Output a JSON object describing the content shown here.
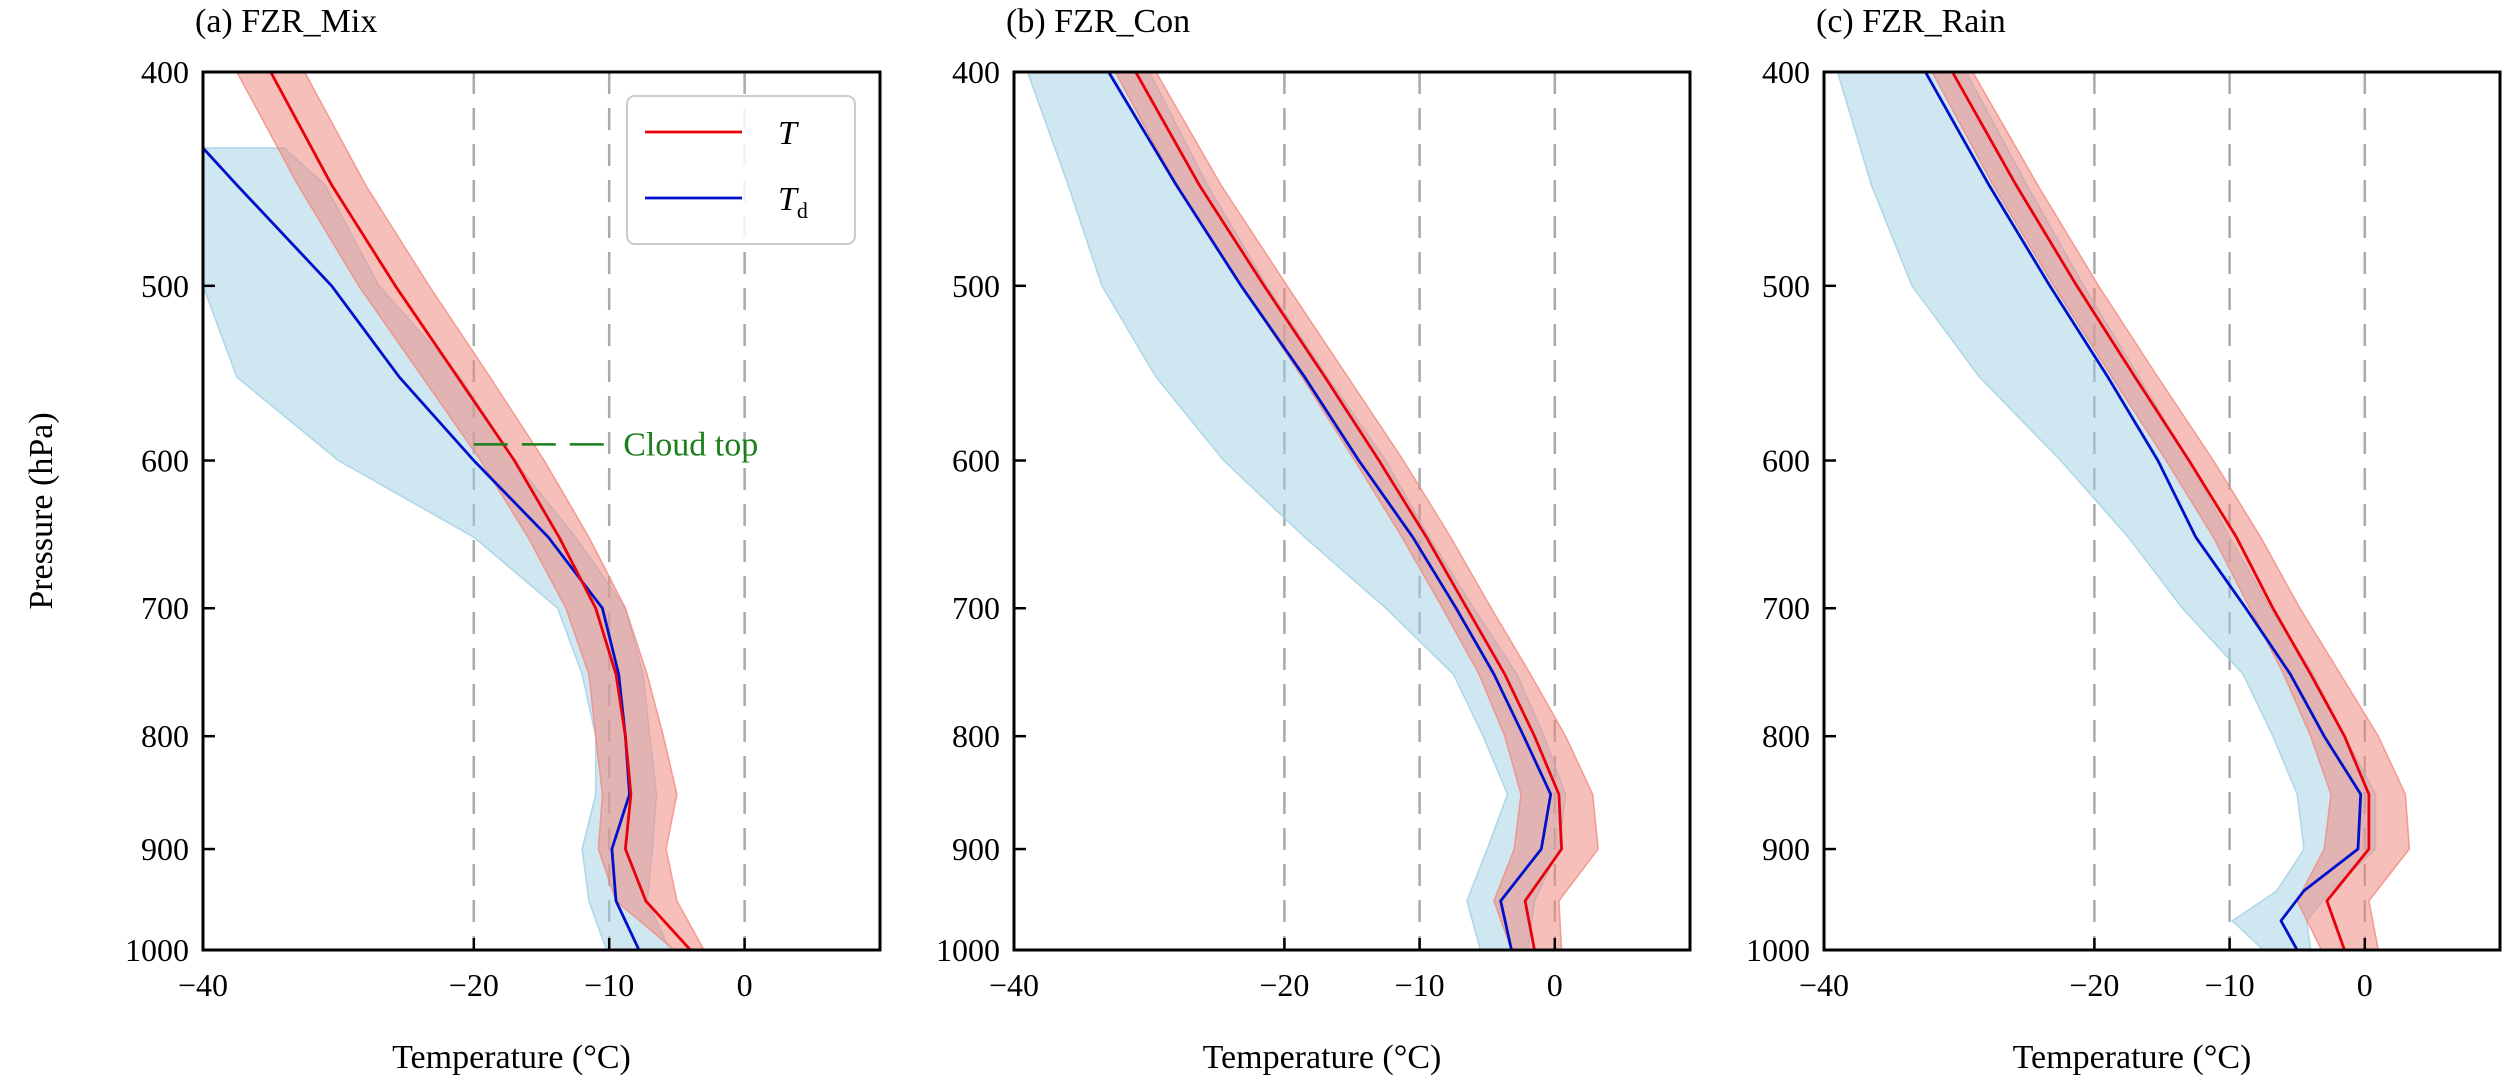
{
  "chart_data": {
    "type": "line",
    "shared": {
      "ylabel": "Pressure (hPa)",
      "xlabel": "Temperature (°C)",
      "xlim": [
        -40,
        10
      ],
      "ylim": [
        1000,
        400
      ],
      "yscale": "log",
      "yticks": [
        "400",
        "500",
        "600",
        "700",
        "800",
        "900",
        "1000"
      ],
      "ytick_values": [
        400,
        500,
        600,
        700,
        800,
        900,
        1000
      ],
      "xticks": [
        "−40",
        "−20",
        "−10",
        "0"
      ],
      "xtick_values": [
        -40,
        -20,
        -10,
        0
      ],
      "vlines": [
        -20,
        -10,
        0
      ],
      "grid": false,
      "colors": {
        "T": "#e8000b",
        "Td": "#0011cc",
        "T_band": "#f08a80",
        "Td_band": "#9fcfe3",
        "cloud_top": "#1a7f1a",
        "vline": "#aaaaaa"
      }
    },
    "legend": {
      "placement": "top-right",
      "entries": [
        {
          "key": "T",
          "label": "T",
          "sub": ""
        },
        {
          "key": "Td",
          "label": "T",
          "sub": "d"
        }
      ]
    },
    "panels": [
      {
        "title": "(a) FZR_Mix",
        "cloud_top": {
          "label": "Cloud top",
          "pressure": 590,
          "x_from": -20,
          "x_to": -10
        },
        "series": [
          {
            "key": "T",
            "p": [
              400,
              450,
              500,
              550,
              600,
              650,
              700,
              750,
              800,
              850,
              900,
              950,
              1000
            ],
            "x": [
              -35,
              -30.5,
              -25.8,
              -21.2,
              -17,
              -13.7,
              -11,
              -9.5,
              -8.8,
              -8.4,
              -8.8,
              -7.3,
              -4
            ],
            "lo": [
              -37.5,
              -33,
              -28.5,
              -23.8,
              -19.5,
              -16,
              -13.2,
              -11.5,
              -11,
              -10.5,
              -10.8,
              -9.5,
              -5.2
            ],
            "hi": [
              -32.5,
              -28,
              -23.3,
              -18.8,
              -14.8,
              -11.5,
              -8.8,
              -7.2,
              -6,
              -5,
              -5.8,
              -5,
              -3
            ]
          },
          {
            "key": "Td",
            "p": [
              433,
              450,
              500,
              550,
              600,
              650,
              700,
              750,
              800,
              850,
              900,
              950,
              1000
            ],
            "x": [
              -40,
              -37.5,
              -30.5,
              -25.5,
              -20,
              -14.5,
              -10.5,
              -9.3,
              -8.8,
              -8.5,
              -9.8,
              -9.5,
              -7.8
            ],
            "lo": [
              -40,
              -40,
              -40,
              -37.5,
              -30,
              -20,
              -13.8,
              -12,
              -11,
              -11,
              -12,
              -11.5,
              -10.2
            ],
            "hi": [
              -34,
              -31,
              -27,
              -21,
              -17,
              -12.5,
              -8.8,
              -7.5,
              -7,
              -6.5,
              -6.8,
              -7.2,
              -5.5
            ]
          }
        ]
      },
      {
        "title": "(b) FZR_Con",
        "series": [
          {
            "key": "T",
            "p": [
              400,
              450,
              500,
              550,
              600,
              650,
              700,
              750,
              800,
              850,
              900,
              950,
              1000
            ],
            "x": [
              -31,
              -26.3,
              -21.5,
              -17,
              -13,
              -9.5,
              -6.5,
              -3.7,
              -1.5,
              0.3,
              0.5,
              -2.2,
              -1.5
            ],
            "lo": [
              -32.5,
              -28,
              -23.2,
              -18.7,
              -14.8,
              -11.3,
              -8.3,
              -5.6,
              -3.7,
              -2.5,
              -3,
              -4.5,
              -3.2
            ],
            "hi": [
              -29.5,
              -24.7,
              -19.8,
              -15.3,
              -11.2,
              -7.7,
              -4.7,
              -1.8,
              0.8,
              2.8,
              3.2,
              0.3,
              0.5
            ]
          },
          {
            "key": "Td",
            "p": [
              400,
              450,
              500,
              550,
              600,
              650,
              700,
              750,
              800,
              850,
              900,
              950,
              1000
            ],
            "x": [
              -33,
              -28,
              -23.2,
              -18.5,
              -14.5,
              -10.5,
              -7.3,
              -4.5,
              -2.3,
              -0.3,
              -1,
              -4,
              -3.2
            ],
            "lo": [
              -39,
              -36,
              -33.5,
              -29.5,
              -24.5,
              -18.5,
              -12.5,
              -7.5,
              -5.3,
              -3.5,
              -5,
              -6.5,
              -5.5
            ],
            "hi": [
              -30,
              -25.7,
              -21.3,
              -16.8,
              -12.5,
              -9.3,
              -6,
              -2.8,
              -0.8,
              0.8,
              0.3,
              -1.5,
              -2
            ]
          }
        ]
      },
      {
        "title": "(c) FZR_Rain",
        "series": [
          {
            "key": "T",
            "p": [
              400,
              450,
              500,
              550,
              600,
              650,
              700,
              750,
              800,
              850,
              900,
              950,
              1000
            ],
            "x": [
              -30.5,
              -25.8,
              -21.3,
              -17,
              -13,
              -9.5,
              -6.8,
              -4,
              -1.5,
              0.3,
              0.3,
              -2.8,
              -1.5
            ],
            "lo": [
              -32,
              -27.5,
              -23,
              -18.7,
              -14.7,
              -11.2,
              -8.5,
              -6,
              -4,
              -2.5,
              -3,
              -5,
              -3.2
            ],
            "hi": [
              -29,
              -24.2,
              -19.7,
              -15.3,
              -11.2,
              -7.7,
              -4.8,
              -1.8,
              1,
              3,
              3.3,
              0.3,
              1
            ]
          },
          {
            "key": "Td",
            "p": [
              400,
              450,
              500,
              550,
              600,
              650,
              700,
              750,
              800,
              850,
              900,
              950,
              1000
            ],
            "x": [
              -32.5,
              -27.8,
              -23.3,
              -19,
              -15.3,
              -12.5,
              -8.8,
              -5.5,
              -3,
              -0.3,
              -0.5,
              -4.5,
              -6.2,
              -5
            ],
            "lo": [
              -39,
              -36.5,
              -33.5,
              -28.5,
              -22.5,
              -17.5,
              -13.5,
              -9,
              -6.8,
              -5,
              -4.5,
              -6.5,
              -9.8,
              -7.5
            ],
            "hi": [
              -29.5,
              -25,
              -20.8,
              -16.7,
              -13,
              -10,
              -7,
              -3.8,
              -1.5,
              0.8,
              0.8,
              -2.5,
              -4.3,
              -4
            ],
            "p_full": [
              400,
              450,
              500,
              550,
              600,
              650,
              700,
              750,
              800,
              850,
              900,
              940,
              970,
              1000
            ]
          }
        ]
      }
    ]
  }
}
